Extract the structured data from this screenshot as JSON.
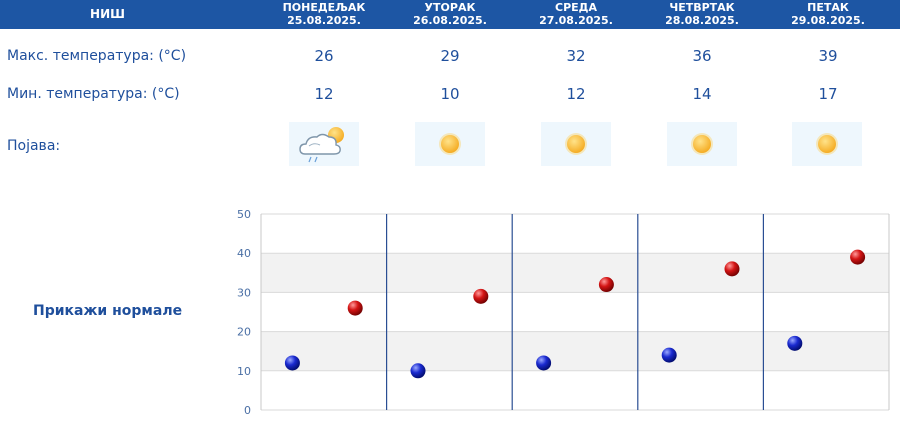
{
  "header": {
    "city": "НИШ",
    "days": [
      {
        "name": "ПОНЕДЕЉАК",
        "date": "25.08.2025."
      },
      {
        "name": "УТОРАК",
        "date": "26.08.2025."
      },
      {
        "name": "СРЕДА",
        "date": "27.08.2025."
      },
      {
        "name": "ЧЕТВРТАК",
        "date": "28.08.2025."
      },
      {
        "name": "ПЕТАК",
        "date": "29.08.2025."
      }
    ]
  },
  "rows": {
    "max_label": "Макс. температура: (°C)",
    "min_label": "Мин. температура: (°C)",
    "phen_label": "Појава:",
    "max": [
      "26",
      "29",
      "32",
      "36",
      "39"
    ],
    "min": [
      "12",
      "10",
      "12",
      "14",
      "17"
    ],
    "icons": [
      "cloud-rain-sun-icon",
      "sun-icon",
      "sun-icon",
      "sun-icon",
      "sun-icon"
    ]
  },
  "normals_link": "Прикажи нормале",
  "colors": {
    "header": "#1d56a4",
    "max": "#cc1111",
    "min": "#1122bb",
    "text": "#1f4f9c"
  },
  "chart_data": {
    "type": "scatter",
    "ylim": [
      0,
      50
    ],
    "yticks": [
      0,
      10,
      20,
      30,
      40,
      50
    ],
    "categories": [
      "25.08.2025.",
      "26.08.2025.",
      "27.08.2025.",
      "28.08.2025.",
      "29.08.2025."
    ],
    "series": [
      {
        "key": "min",
        "values": [
          12,
          10,
          12,
          14,
          17
        ]
      },
      {
        "key": "max",
        "values": [
          26,
          29,
          32,
          36,
          39
        ]
      }
    ]
  }
}
